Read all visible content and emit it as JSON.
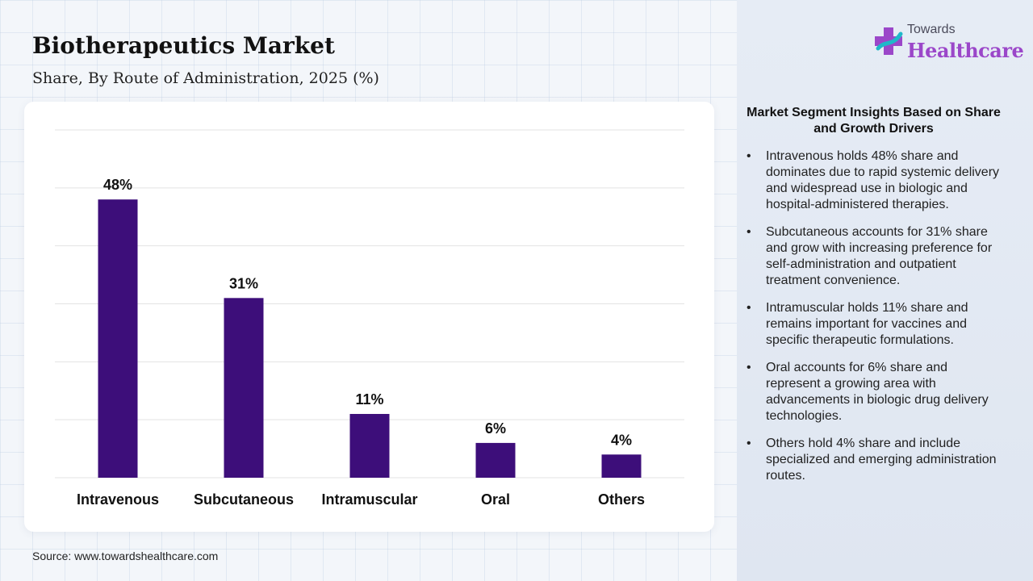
{
  "header": {
    "title": "Biotherapeutics Market",
    "subtitle": "Share, By Route of Administration, 2025 (%)"
  },
  "logo": {
    "line1": "Towards",
    "line2": "Healthcare",
    "icon": "medical-cross-icon",
    "colors": {
      "purple": "#9b47c9",
      "teal": "#1fb8c9",
      "gray": "#4a4a5a"
    }
  },
  "chart_data": {
    "type": "bar",
    "categories": [
      "Intravenous",
      "Subcutaneous",
      "Intramuscular",
      "Oral",
      "Others"
    ],
    "values": [
      48,
      31,
      11,
      6,
      4
    ],
    "data_labels": [
      "48%",
      "31%",
      "11%",
      "6%",
      "4%"
    ],
    "title": "Biotherapeutics Market",
    "subtitle": "Share, By Route of Administration, 2025 (%)",
    "xlabel": "",
    "ylabel": "",
    "ylim": [
      0,
      60
    ],
    "y_gridline_step": 10,
    "grid": true,
    "y_axis_labels_shown": false,
    "legend": "none",
    "bar_color": "#3d0e7a"
  },
  "insights": {
    "title": "Market Segment Insights Based on Share and Growth Drivers",
    "bullet": "•",
    "items": [
      "Intravenous holds 48% share and dominates due to rapid systemic delivery and widespread use in biologic and hospital-administered therapies.",
      "Subcutaneous accounts for 31% share and grow with increasing preference for self-administration and outpatient treatment convenience.",
      "Intramuscular holds 11% share and remains important for vaccines and specific therapeutic formulations.",
      "Oral accounts for 6% share and represent a growing area with advancements in biologic drug delivery technologies.",
      "Others hold 4% share and include specialized and emerging administration routes."
    ]
  },
  "footer": {
    "source": "Source: www.towardshealthcare.com"
  }
}
